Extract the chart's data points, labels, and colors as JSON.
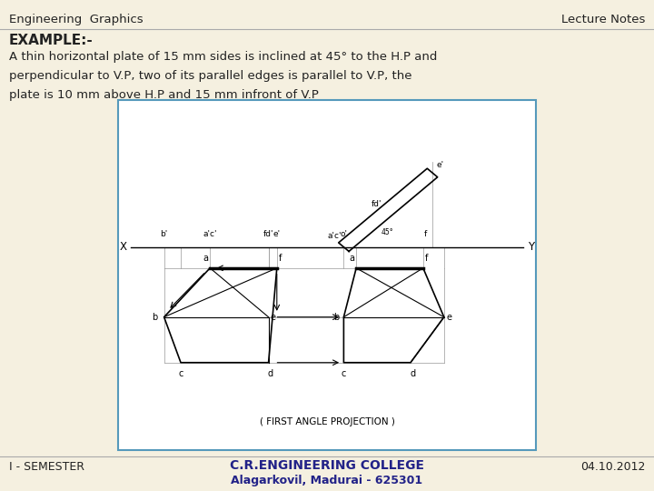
{
  "title_left": "Engineering  Graphics",
  "title_right": "Lecture Notes",
  "example_label": "EXAMPLE:-",
  "desc_line1": "A thin horizontal plate of 15 mm sides is inclined at 45° to the H.P and",
  "desc_line2": "perpendicular to V.P, two of its parallel edges is parallel to V.P, the",
  "desc_line3": "plate is 10 mm above H.P and 15 mm infront of V.P",
  "footer_center_line1": "C.R.ENGINEERING COLLEGE",
  "footer_center_line2": "Alagarkovil, Madurai - 625301",
  "footer_left": "I - SEMESTER",
  "footer_right": "04.10.2012",
  "bg_color": "#f5f0e0",
  "box_color": "#5599bb",
  "diagram_bg": "#ffffff",
  "text_color": "#222222"
}
